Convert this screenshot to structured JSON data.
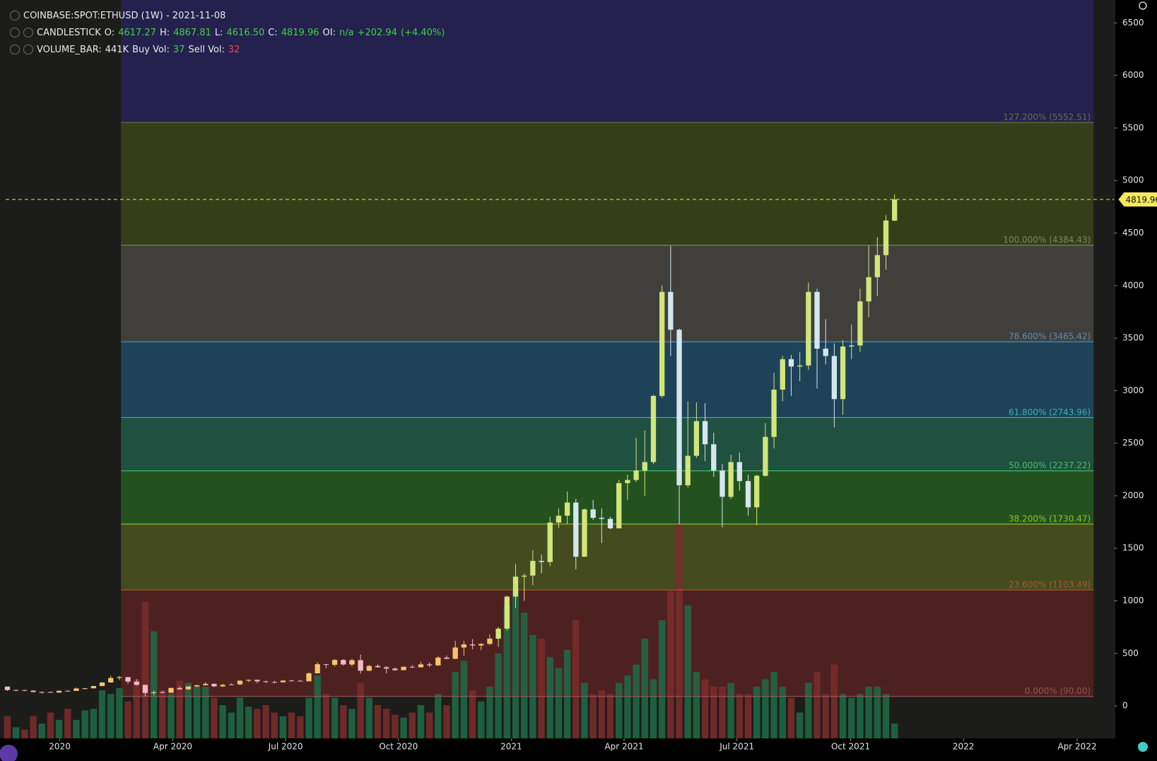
{
  "chart_data": {
    "type": "candlestick",
    "title": "COINBASE:SPOT:ETHUSD (1W) - 2021-11-08",
    "legend": {
      "candle": {
        "name": "CANDLESTICK",
        "items": [
          {
            "key": "O:",
            "value": "4617.27"
          },
          {
            "key": "H:",
            "value": "4867.81"
          },
          {
            "key": "L:",
            "value": "4616.50"
          },
          {
            "key": "C:",
            "value": "4819.96"
          },
          {
            "key": "OI:",
            "value": "n/a"
          }
        ],
        "change": "+202.94",
        "change_pct": "(+4.40%)"
      },
      "volume": {
        "name": "VOLUME_BAR:",
        "total": "441K",
        "items": [
          {
            "key": "Buy Vol:",
            "value": "37",
            "color": "#3fd13f"
          },
          {
            "key": "Sell Vol:",
            "value": "32",
            "color": "#f04848"
          }
        ]
      }
    },
    "open": [
      184,
      151,
      151,
      145,
      132,
      133,
      127,
      144,
      143,
      166,
      168,
      189,
      223,
      266,
      274,
      231,
      200,
      123,
      131,
      125,
      170,
      158,
      185,
      197,
      210,
      186,
      200,
      205,
      240,
      248,
      233,
      228,
      225,
      241,
      239,
      234,
      310,
      397,
      391,
      437,
      394,
      435,
      335,
      380,
      368,
      355,
      340,
      372,
      367,
      395,
      386,
      460,
      448,
      556,
      585,
      575,
      590,
      640,
      735,
      1040,
      1230,
      1240,
      1380,
      1370,
      1745,
      1810,
      1935,
      1420,
      1870,
      1790,
      1780,
      1690,
      2120,
      2150,
      2240,
      2320,
      2950,
      3940,
      3580,
      2100,
      2380,
      2710,
      2490,
      2240,
      1990,
      2320,
      2140,
      1890,
      2190,
      2560,
      3010,
      3300,
      3230,
      3240,
      3940,
      3400,
      3330,
      2920,
      3420,
      3430,
      3850,
      4080,
      4290,
      4617.27
    ],
    "high": [
      185,
      157,
      152,
      148,
      136,
      135,
      145,
      147,
      176,
      171,
      190,
      227,
      288,
      287,
      276,
      254,
      202,
      147,
      144,
      175,
      185,
      187,
      199,
      227,
      215,
      211,
      214,
      244,
      250,
      250,
      242,
      238,
      244,
      249,
      246,
      320,
      415,
      400,
      446,
      445,
      450,
      488,
      390,
      395,
      380,
      365,
      376,
      390,
      420,
      412,
      472,
      480,
      620,
      618,
      635,
      596,
      680,
      750,
      1050,
      1350,
      1260,
      1480,
      1440,
      1800,
      1880,
      2040,
      1970,
      1880,
      1960,
      1880,
      1800,
      2150,
      2200,
      2550,
      2620,
      2960,
      4000,
      4380,
      3590,
      2900,
      2890,
      2880,
      2600,
      2300,
      2390,
      2410,
      2200,
      2200,
      2690,
      3170,
      3330,
      3340,
      3370,
      4030,
      3970,
      3680,
      3450,
      3480,
      3630,
      3970,
      4380,
      4460,
      4670,
      4867.81
    ],
    "low": [
      142,
      143,
      140,
      131,
      116,
      125,
      126,
      136,
      142,
      155,
      165,
      187,
      221,
      244,
      209,
      194,
      90,
      100,
      122,
      125,
      155,
      150,
      180,
      194,
      180,
      180,
      197,
      199,
      227,
      215,
      221,
      214,
      224,
      234,
      232,
      233,
      310,
      360,
      375,
      385,
      376,
      308,
      332,
      364,
      310,
      335,
      340,
      361,
      365,
      370,
      380,
      447,
      445,
      480,
      540,
      530,
      580,
      560,
      715,
      930,
      1000,
      1150,
      1260,
      1330,
      1690,
      1730,
      1300,
      1420,
      1770,
      1550,
      1680,
      1690,
      1960,
      2130,
      2000,
      2300,
      2930,
      3330,
      1730,
      2080,
      2360,
      2330,
      2180,
      1700,
      1970,
      2050,
      1810,
      1720,
      2180,
      2450,
      2900,
      2950,
      3090,
      3200,
      3020,
      3250,
      2650,
      2770,
      3300,
      3370,
      3700,
      3900,
      4150,
      4616.5
    ],
    "close": [
      151,
      151,
      145,
      132,
      133,
      127,
      144,
      143,
      166,
      168,
      189,
      223,
      266,
      274,
      231,
      200,
      123,
      131,
      125,
      170,
      158,
      185,
      197,
      210,
      186,
      200,
      205,
      240,
      248,
      233,
      228,
      225,
      241,
      239,
      234,
      310,
      397,
      391,
      437,
      394,
      435,
      335,
      380,
      368,
      355,
      340,
      372,
      367,
      395,
      386,
      460,
      448,
      556,
      585,
      575,
      590,
      640,
      735,
      1040,
      1230,
      1240,
      1380,
      1370,
      1745,
      1810,
      1935,
      1420,
      1870,
      1790,
      1780,
      1690,
      2120,
      2150,
      2240,
      2320,
      2950,
      3940,
      3580,
      2100,
      2380,
      2710,
      2490,
      2240,
      1990,
      2320,
      2140,
      1890,
      2190,
      2560,
      3010,
      3300,
      3230,
      3240,
      3940,
      3400,
      3330,
      2920,
      3420,
      3430,
      3850,
      4080,
      4290,
      4620,
      4819.96
    ],
    "volume": [
      660,
      330,
      264,
      660,
      440,
      770,
      550,
      880,
      550,
      836,
      880,
      1430,
      1320,
      1496,
      1100,
      1760,
      4070,
      3190,
      1430,
      1320,
      1716,
      1650,
      1540,
      1540,
      1210,
      990,
      770,
      1210,
      946,
      880,
      990,
      770,
      660,
      770,
      660,
      1210,
      1870,
      1320,
      1210,
      990,
      880,
      1650,
      1210,
      990,
      880,
      704,
      616,
      770,
      990,
      770,
      1320,
      990,
      1980,
      2310,
      1430,
      1100,
      1540,
      2530,
      3960,
      4510,
      3740,
      3080,
      2970,
      2420,
      2090,
      2640,
      3520,
      1650,
      1320,
      1430,
      1320,
      1650,
      1870,
      2200,
      2970,
      1760,
      3520,
      4400,
      6380,
      3960,
      1980,
      1760,
      1540,
      1540,
      1650,
      1320,
      1320,
      1540,
      1760,
      1980,
      1540,
      1210,
      770,
      1650,
      1980,
      1320,
      2200,
      1320,
      1210,
      1320,
      1540,
      1540,
      1320,
      441
    ],
    "colors": {
      "up": "#d2e57a",
      "down": "#d6e6ef",
      "up_early": "#f5c46e",
      "down_early": "#f3b9c6",
      "volume_up": "#1f6b45",
      "volume_down": "#7d2c2c",
      "price_line": "#f4e85c"
    },
    "last_price": "4819.96",
    "fib_levels": [
      {
        "value": 90,
        "label": "0.000% (90.00)",
        "color": "#a05a5a",
        "fill": "#4e2121"
      },
      {
        "value": 1103.49,
        "label": "23.600% (1103.49)",
        "color": "#b8602e",
        "fill": "#434b1f"
      },
      {
        "value": 1730.47,
        "label": "38.200% (1730.47)",
        "color": "#a5d42a",
        "fill": "#24521f"
      },
      {
        "value": 2237.22,
        "label": "50.000% (2237.22)",
        "color": "#45d46b",
        "fill": "#20503f"
      },
      {
        "value": 2743.96,
        "label": "61.800% (2743.96)",
        "color": "#3cc4b4",
        "fill": "#1e4359"
      },
      {
        "value": 3465.42,
        "label": "78.600% (3465.42)",
        "color": "#5c9cce",
        "fill": "#403f3c"
      },
      {
        "value": 4384.43,
        "label": "100.000% (4384.43)",
        "color": "#8d8f78",
        "fill": "#343f18"
      },
      {
        "value": 5552.51,
        "label": "127.200% (5552.51)",
        "color": "#6f7d45",
        "fill": "#24214f"
      }
    ],
    "ylim": [
      -309,
      6718
    ],
    "yticks": [
      0,
      500,
      1000,
      1500,
      2000,
      2500,
      3000,
      3500,
      4000,
      4500,
      5000,
      5500,
      6000,
      6500
    ],
    "y2lim": [
      0,
      22000
    ],
    "xlim": [
      -0.86,
      128.5
    ],
    "xticks": [
      {
        "value": 6.08,
        "label": "2020"
      },
      {
        "value": 19.2,
        "label": "Apr 2020"
      },
      {
        "value": 32.3,
        "label": "Jul 2020"
      },
      {
        "value": 45.4,
        "label": "Oct 2020"
      },
      {
        "value": 58.5,
        "label": "2021"
      },
      {
        "value": 71.6,
        "label": "Apr 2021"
      },
      {
        "value": 84.7,
        "label": "Jul 2021"
      },
      {
        "value": 97.9,
        "label": "Oct 2021"
      },
      {
        "value": 111.0,
        "label": "2022"
      },
      {
        "value": 124.2,
        "label": "Apr 2022"
      }
    ]
  }
}
